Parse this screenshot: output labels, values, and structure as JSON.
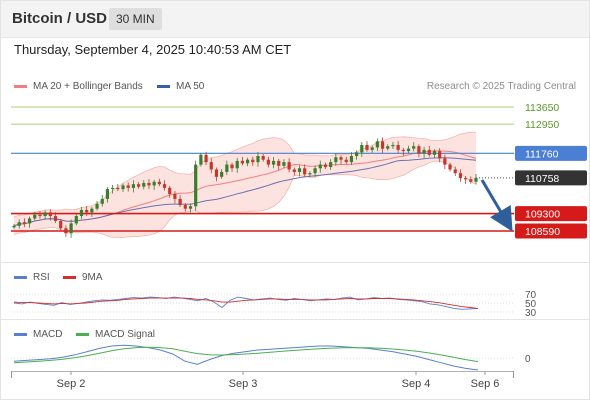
{
  "header": {
    "title": "Bitcoin / USD",
    "timeframe": "30 MIN"
  },
  "timestamp": "Thursday, September 4, 2025 10:40:53 AM CET",
  "legend": {
    "ma20": {
      "label": "MA 20 + Bollinger Bands",
      "color": "#f08080"
    },
    "ma50": {
      "label": "MA 50",
      "color": "#3a5fa0"
    },
    "research": "Research © 2025 Trading Central"
  },
  "rsi_legend": {
    "rsi": "RSI",
    "ma9": "9MA"
  },
  "macd_legend": {
    "macd": "MACD",
    "signal": "MACD Signal"
  },
  "colors": {
    "up": "#3a7d2c",
    "down": "#c0392b",
    "resistance": "#8bc34a",
    "pivot": "#4a7fd4",
    "support": "#d61a1a",
    "last": "#333333",
    "arrow": "#2f5f9a"
  },
  "chart_data": [
    {
      "type": "candlestick",
      "title": "",
      "ylim": [
        107800,
        114200
      ],
      "x_ticks": [
        "Sep 2",
        "Sep 3",
        "Sep 4",
        "Sep 6"
      ],
      "levels": [
        {
          "label": "113650",
          "value": 113650,
          "kind": "resistance"
        },
        {
          "label": "112950",
          "value": 112950,
          "kind": "resistance"
        },
        {
          "label": "111760",
          "value": 111760,
          "kind": "pivot"
        },
        {
          "label": "110758",
          "value": 110758,
          "kind": "last"
        },
        {
          "label": "109300",
          "value": 109300,
          "kind": "support"
        },
        {
          "label": "108590",
          "value": 108590,
          "kind": "support"
        }
      ],
      "close": [
        108800,
        108950,
        108900,
        109100,
        109250,
        109200,
        109350,
        109200,
        109000,
        108700,
        108500,
        108900,
        109200,
        109450,
        109350,
        109500,
        109700,
        109900,
        110300,
        110350,
        110300,
        110450,
        110350,
        110500,
        110400,
        110550,
        110450,
        110600,
        110500,
        110350,
        110100,
        109900,
        109650,
        109500,
        109600,
        111300,
        111700,
        111400,
        111100,
        110800,
        111000,
        111300,
        111150,
        111450,
        111350,
        111500,
        111400,
        111650,
        111500,
        111300,
        111450,
        111250,
        111400,
        111100,
        111000,
        111150,
        110900,
        110950,
        111150,
        111300,
        111200,
        111400,
        111600,
        111500,
        111400,
        111650,
        111800,
        112100,
        111900,
        112000,
        112250,
        111950,
        112050,
        112100,
        111900,
        111850,
        111950,
        112050,
        111750,
        111900,
        111700,
        111850,
        111550,
        111300,
        111100,
        110950,
        110750,
        110700,
        110600,
        110758
      ]
    },
    {
      "type": "line",
      "title": "RSI",
      "ylim": [
        20,
        80
      ],
      "y_ticks": [
        70,
        50,
        30
      ],
      "series": [
        {
          "name": "RSI",
          "values": [
            50,
            48,
            52,
            49,
            47,
            45,
            51,
            47,
            49,
            52,
            55,
            57,
            56,
            58,
            60,
            62,
            61,
            63,
            62,
            60,
            63,
            61,
            58,
            55,
            60,
            52,
            40,
            56,
            63,
            60,
            57,
            59,
            61,
            58,
            56,
            60,
            58,
            55,
            57,
            59,
            58,
            61,
            63,
            57,
            59,
            62,
            60,
            61,
            58,
            57,
            55,
            53,
            48,
            46,
            42,
            38,
            36,
            37,
            38
          ]
        },
        {
          "name": "9MA",
          "values": [
            52,
            51,
            51,
            50,
            49,
            48,
            49,
            48,
            49,
            50,
            52,
            54,
            55,
            56,
            58,
            59,
            60,
            61,
            61,
            61,
            61,
            61,
            60,
            58,
            57,
            55,
            52,
            52,
            54,
            56,
            57,
            58,
            59,
            59,
            58,
            58,
            58,
            57,
            57,
            57,
            58,
            59,
            60,
            59,
            59,
            60,
            60,
            60,
            59,
            58,
            57,
            55,
            53,
            51,
            48,
            45,
            42,
            40,
            38
          ]
        }
      ]
    },
    {
      "type": "line",
      "title": "MACD",
      "ylim": [
        -260,
        260
      ],
      "y_ticks": [
        0
      ],
      "series": [
        {
          "name": "MACD",
          "values": [
            -40,
            -30,
            -20,
            -10,
            10,
            40,
            80,
            120,
            150,
            160,
            150,
            130,
            100,
            50,
            -40,
            -80,
            -20,
            30,
            60,
            80,
            100,
            110,
            120,
            130,
            140,
            150,
            150,
            140,
            130,
            120,
            100,
            80,
            50,
            20,
            -20,
            -60,
            -100,
            -130,
            -150
          ]
        },
        {
          "name": "MACD Signal",
          "values": [
            -60,
            -50,
            -40,
            -30,
            -15,
            5,
            30,
            60,
            90,
            115,
            130,
            135,
            130,
            115,
            85,
            55,
            40,
            38,
            42,
            50,
            60,
            72,
            84,
            95,
            106,
            116,
            124,
            128,
            129,
            127,
            122,
            113,
            100,
            84,
            63,
            38,
            10,
            -20,
            -45
          ]
        }
      ]
    }
  ]
}
